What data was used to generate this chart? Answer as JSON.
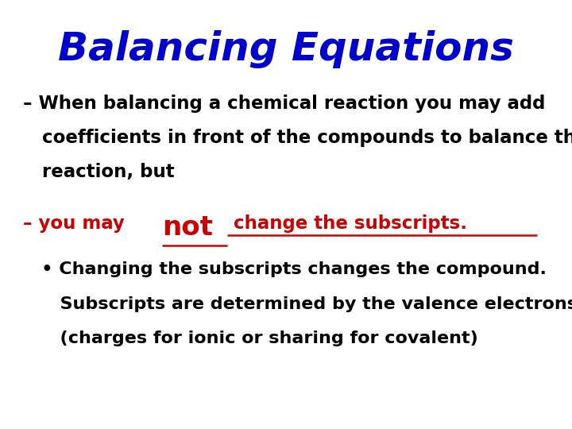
{
  "title": "Balancing Equations",
  "title_color": "#0000CC",
  "title_fontsize": 36,
  "title_style": "italic",
  "title_weight": "bold",
  "background_color": "#FFFFFF",
  "body_color": "#000000",
  "red_color": "#CC0000",
  "body_fontsize": 16.5,
  "line1": "– When balancing a chemical reaction you may add",
  "line2": "   coefficients in front of the compounds to balance the",
  "line3": "   reaction, but",
  "line4_prefix": "– you may ",
  "line4_not": "not",
  "line4_suffix": " change the subscripts.",
  "line5": "   • Changing the subscripts changes the compound.",
  "line6": "      Subscripts are determined by the valence electrons",
  "line7": "      (charges for ionic or sharing for covalent)"
}
